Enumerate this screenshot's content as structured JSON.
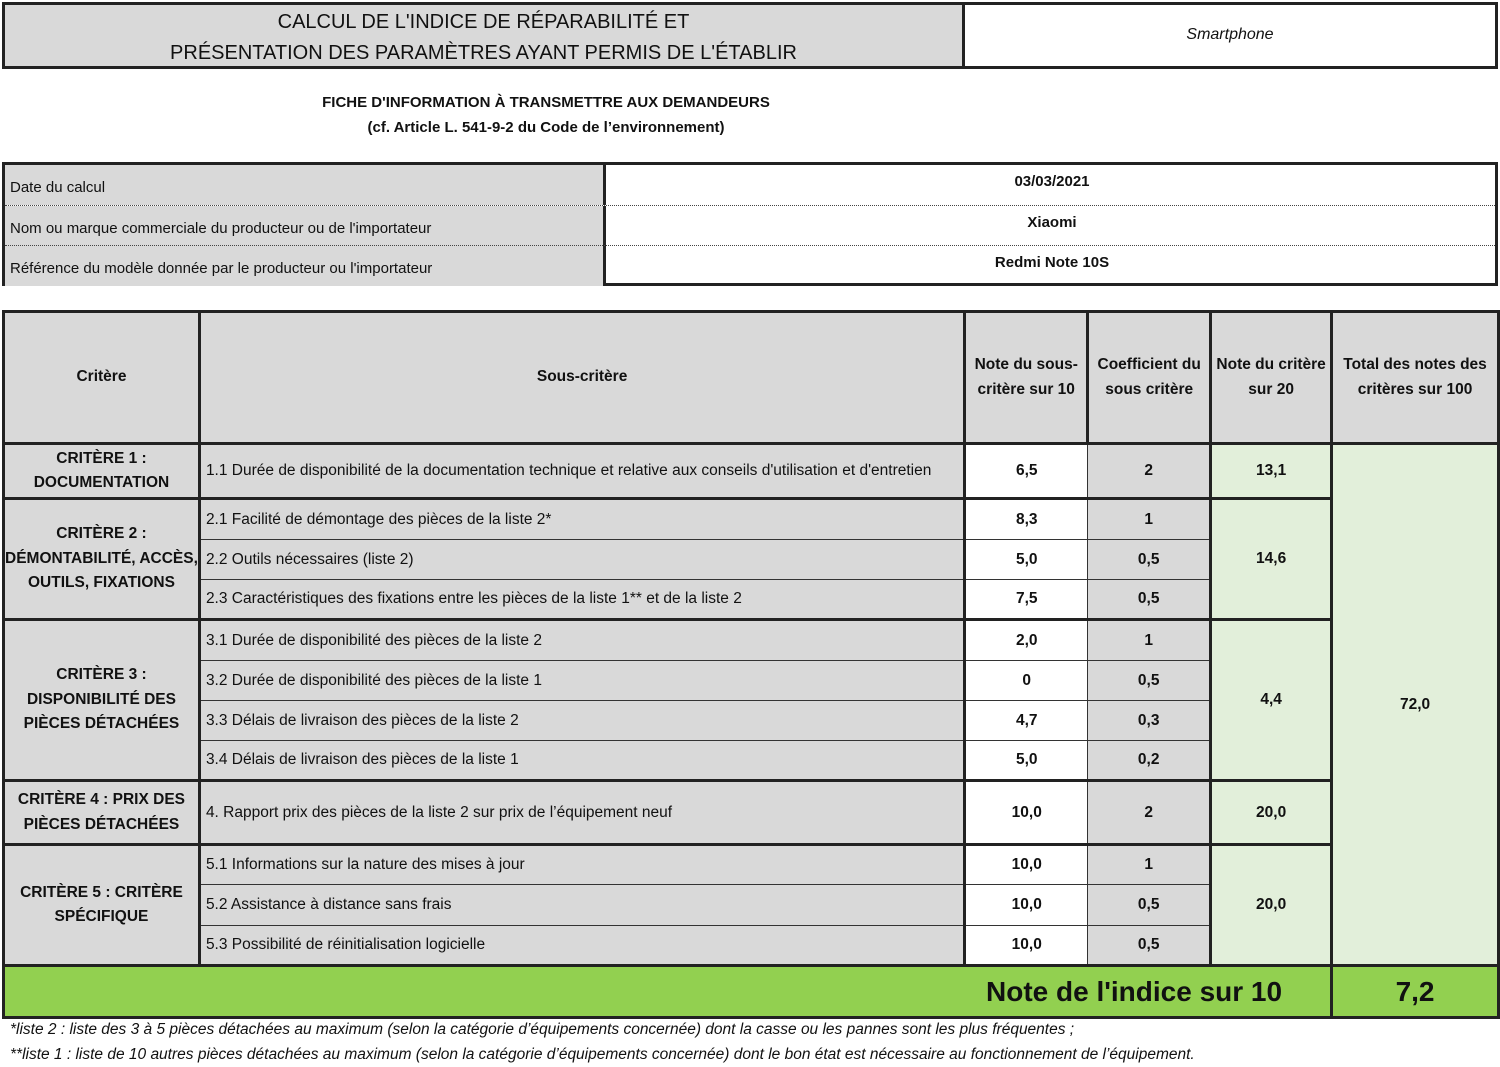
{
  "header": {
    "title_line1": "CALCUL DE L'INDICE DE RÉPARABILITÉ ET",
    "title_line2": "PRÉSENTATION DES PARAMÈTRES AYANT PERMIS DE L'ÉTABLIR",
    "product_type": "Smartphone"
  },
  "subtitle": {
    "line1": "FICHE D'INFORMATION À TRANSMETTRE AUX DEMANDEURS",
    "line2": "(cf. Article L. 541-9-2 du Code de l’environnement)"
  },
  "info": [
    {
      "label": "Date du calcul",
      "value": "03/03/2021"
    },
    {
      "label": "Nom ou marque commerciale du producteur ou de l'importateur",
      "value": "Xiaomi"
    },
    {
      "label": "Référence du modèle donnée par le producteur ou l'importateur",
      "value": "Redmi Note 10S"
    }
  ],
  "table": {
    "headers": [
      "Critère",
      "Sous-critère",
      "Note du sous-critère sur 10",
      "Coefficient du sous critère",
      "Note du critère sur 20",
      "Total des notes des critères sur 100"
    ],
    "total": "72,0",
    "criteria": [
      {
        "name": "CRITÈRE 1 : DOCUMENTATION",
        "note": "13,1",
        "sub": [
          {
            "label": "1.1 Durée de disponibilité de la documentation technique et relative aux conseils d'utilisation et d'entretien",
            "note": "6,5",
            "coef": "2"
          }
        ]
      },
      {
        "name": "CRITÈRE 2 : DÉMONTABILITÉ, ACCÈS, OUTILS, FIXATIONS",
        "note": "14,6",
        "sub": [
          {
            "label": "2.1 Facilité de démontage des pièces de la liste 2*",
            "note": "8,3",
            "coef": "1"
          },
          {
            "label": "2.2 Outils nécessaires (liste 2)",
            "note": "5,0",
            "coef": "0,5"
          },
          {
            "label": "2.3 Caractéristiques des fixations entre les pièces de la liste 1** et de la liste 2",
            "note": "7,5",
            "coef": "0,5"
          }
        ]
      },
      {
        "name": "CRITÈRE 3 : DISPONIBILITÉ DES PIÈCES DÉTACHÉES",
        "note": "4,4",
        "sub": [
          {
            "label": "3.1 Durée de disponibilité des pièces de la liste 2",
            "note": "2,0",
            "coef": "1"
          },
          {
            "label": "3.2 Durée de disponibilité des pièces de la liste 1",
            "note": "0",
            "coef": "0,5"
          },
          {
            "label": "3.3 Délais de livraison des pièces de la liste 2",
            "note": "4,7",
            "coef": "0,3"
          },
          {
            "label": "3.4 Délais de livraison des pièces de la liste 1",
            "note": "5,0",
            "coef": "0,2"
          }
        ]
      },
      {
        "name": "CRITÈRE 4 : PRIX DES PIÈCES DÉTACHÉES",
        "note": "20,0",
        "sub": [
          {
            "label": "4. Rapport prix des pièces de la liste 2 sur prix de l’équipement neuf",
            "note": "10,0",
            "coef": "2"
          }
        ]
      },
      {
        "name": "CRITÈRE 5 : CRITÈRE SPÉCIFIQUE",
        "note": "20,0",
        "sub": [
          {
            "label": "5.1 Informations sur la nature des mises à jour",
            "note": "10,0",
            "coef": "1"
          },
          {
            "label": "5.2 Assistance à distance sans frais",
            "note": "10,0",
            "coef": "0,5"
          },
          {
            "label": "5.3 Possibilité de réinitialisation logicielle",
            "note": "10,0",
            "coef": "0,5"
          }
        ]
      }
    ],
    "final_label": "Note de l'indice sur 10",
    "final_value": "7,2"
  },
  "footnotes": [
    "*liste 2 : liste des 3 à 5 pièces détachées au maximum (selon la catégorie d’équipements concernée) dont la casse ou les pannes sont les plus fréquentes ;",
    "**liste 1 : liste de 10 autres pièces détachées au maximum (selon la catégorie d’équipements concernée) dont le bon état est nécessaire au fonctionnement de l’équipement."
  ]
}
